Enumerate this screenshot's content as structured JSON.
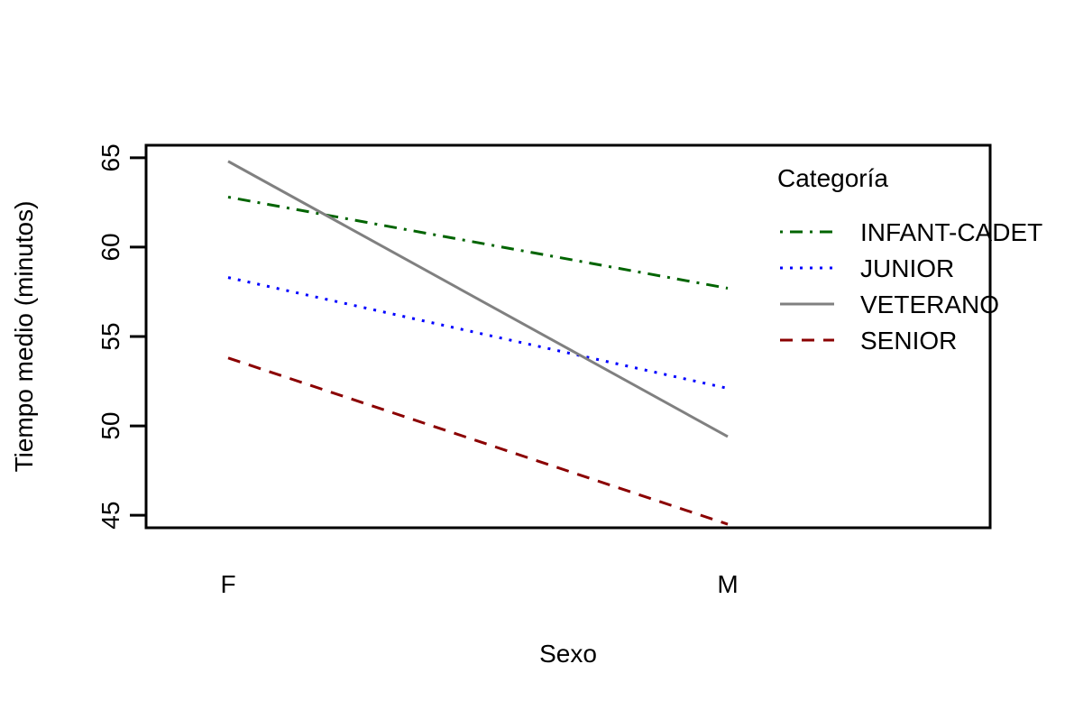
{
  "chart_data": {
    "type": "line",
    "title": "",
    "xlabel": "Sexo",
    "ylabel": "Tiempo medio (minutos)",
    "categories": [
      "F",
      "M"
    ],
    "ylim": [
      44.3,
      65.7
    ],
    "yticks": [
      45,
      50,
      55,
      60,
      65
    ],
    "grid": false,
    "legend": {
      "title": "Categoría",
      "placement": "top-right"
    },
    "series": [
      {
        "name": "INFANT-CADET",
        "values": [
          62.8,
          57.7
        ],
        "color": "#006400",
        "line_style": "dotdash"
      },
      {
        "name": "JUNIOR",
        "values": [
          58.3,
          52.1
        ],
        "color": "#0000ff",
        "line_style": "dotted"
      },
      {
        "name": "VETERANO",
        "values": [
          64.8,
          49.4
        ],
        "color": "#808080",
        "line_style": "solid"
      },
      {
        "name": "SENIOR",
        "values": [
          53.8,
          44.5
        ],
        "color": "#8b0000",
        "line_style": "dashed"
      }
    ]
  }
}
